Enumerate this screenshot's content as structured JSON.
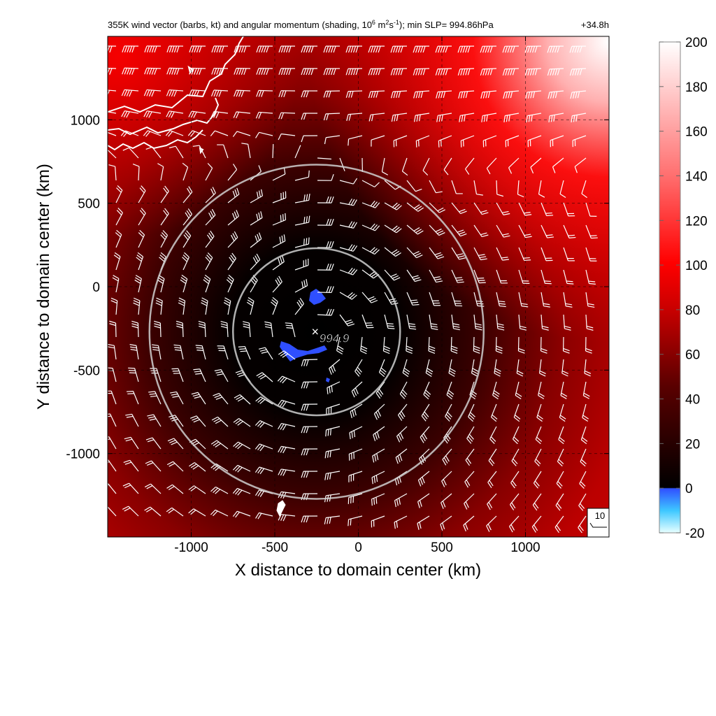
{
  "chart_data": {
    "type": "heatmap",
    "title": "355K wind vector (barbs, kt) and angular momentum (shading, 10",
    "title_sup1": "6",
    "title_mid": " m",
    "title_sup2": "2",
    "title_mid2": "s",
    "title_sup3": "-1",
    "title_end": "); min SLP= 994.86hPa",
    "time_label": "+34.8h",
    "xlabel": "X distance to domain center (km)",
    "ylabel": "Y distance to domain center (km)",
    "xlim": [
      -1500,
      1500
    ],
    "ylim": [
      -1500,
      1500
    ],
    "x_ticks": [
      -1000,
      -500,
      0,
      500,
      1000
    ],
    "y_ticks": [
      1000,
      500,
      0,
      -500,
      -1000
    ],
    "x_tick_labels": [
      "-1000",
      "-500",
      "0",
      "500",
      "1000"
    ],
    "y_tick_labels": [
      "1000",
      "500",
      "0",
      "-500",
      "-1000"
    ],
    "grid": true,
    "storm_center_km": [
      -250,
      -270
    ],
    "min_slp_label": "994.9",
    "ring_radii_km": [
      500,
      1000
    ],
    "barb_reference_label": "10",
    "colorbar": {
      "range": [
        -20,
        200
      ],
      "ticks": [
        200,
        180,
        160,
        140,
        120,
        100,
        80,
        60,
        40,
        20,
        0,
        -20
      ],
      "tick_labels": [
        "200",
        "180",
        "160",
        "140",
        "120",
        "100",
        "80",
        "60",
        "40",
        "20",
        "0",
        "-20"
      ]
    },
    "colors": {
      "negative_low": "#e8ffff",
      "negative_mid": "#3ec8ff",
      "negative_high": "#3050ff",
      "zero": "#000000",
      "mid": "#cc0000",
      "high": "#ff1a1a",
      "max": "#ffffff",
      "barb": "#ffffff",
      "ring": "#cfcfcf",
      "coast": "#ffffff"
    }
  }
}
